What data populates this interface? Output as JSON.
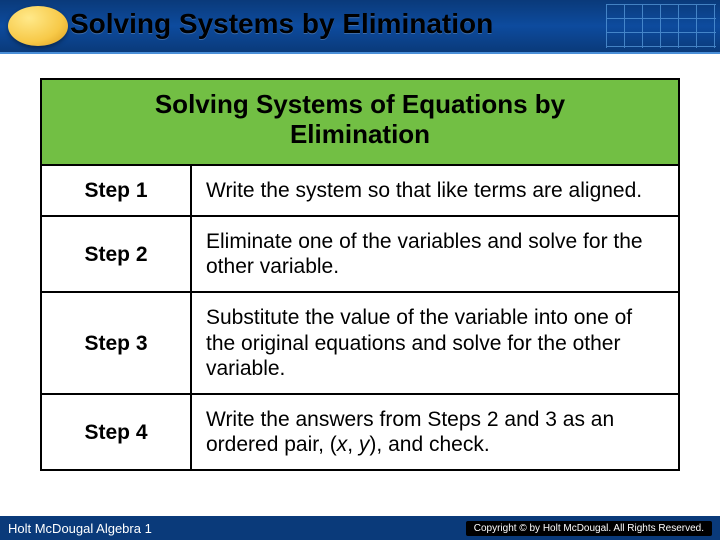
{
  "header": {
    "title": "Solving Systems by Elimination",
    "bg_gradient": [
      "#0a3a7a",
      "#0d4b9e",
      "#0a3a7a"
    ],
    "oval_colors": [
      "#ffe98a",
      "#f7c948",
      "#d99a1a"
    ]
  },
  "table": {
    "title_line1": "Solving Systems of Equations by",
    "title_line2": "Elimination",
    "title_bg": "#72bf44",
    "border_color": "#000000",
    "rows": [
      {
        "label": "Step 1",
        "desc": "Write the system so that like terms are aligned."
      },
      {
        "label": "Step 2",
        "desc": "Eliminate one of the variables and solve for the other variable."
      },
      {
        "label": "Step 3",
        "desc": "Substitute the value of the variable into one of the original equations and solve for the other variable."
      },
      {
        "label": "Step 4",
        "desc_prefix": "Write the answers from Steps 2 and 3 as an ordered pair, (",
        "x": "x",
        "comma": ", ",
        "y": "y",
        "desc_suffix": "), and check."
      }
    ]
  },
  "footer": {
    "left": "Holt McDougal Algebra 1",
    "right": "Copyright © by Holt McDougal. All Rights Reserved.",
    "bg": "#0a3a7a"
  }
}
